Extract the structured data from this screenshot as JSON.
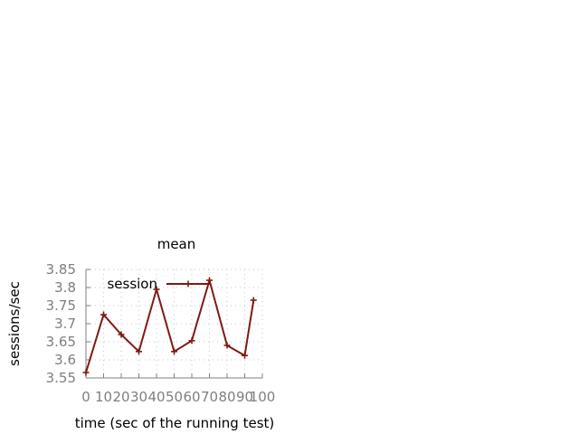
{
  "chart_data": {
    "type": "line",
    "title": "mean",
    "xlabel": "time (sec of the running test)",
    "ylabel": "sessions/sec",
    "xlim": [
      0,
      100
    ],
    "ylim": [
      3.55,
      3.85
    ],
    "xticks": [
      0,
      10,
      20,
      30,
      40,
      50,
      60,
      70,
      80,
      90,
      100
    ],
    "xtick_labels": [
      "0",
      "10",
      "20",
      "30",
      "40",
      "50",
      "60",
      "70",
      "80",
      "90",
      "100"
    ],
    "yticks": [
      3.55,
      3.6,
      3.65,
      3.7,
      3.75,
      3.8,
      3.85
    ],
    "ytick_labels": [
      "3.55",
      "3.6",
      "3.65",
      "3.7",
      "3.75",
      "3.8",
      "3.85"
    ],
    "grid": true,
    "legend_position": "top-right",
    "series": [
      {
        "name": "session",
        "color": "#7f1a12",
        "marker": "plus",
        "x": [
          0,
          10,
          20,
          30,
          40,
          50,
          60,
          70,
          80,
          90,
          95
        ],
        "y": [
          3.565,
          3.725,
          3.67,
          3.623,
          3.795,
          3.623,
          3.653,
          3.82,
          3.64,
          3.612,
          3.765
        ]
      }
    ]
  }
}
